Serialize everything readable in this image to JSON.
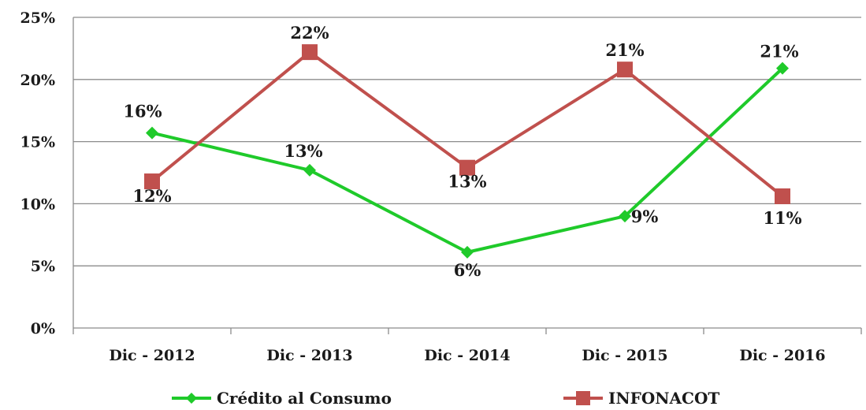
{
  "chart_data": {
    "type": "line",
    "categories": [
      "Dic - 2012",
      "Dic - 2013",
      "Dic - 2014",
      "Dic - 2015",
      "Dic - 2016"
    ],
    "ylim": [
      0,
      25
    ],
    "yticks": [
      0,
      5,
      10,
      15,
      20,
      25
    ],
    "ytick_suffix": "%",
    "grid": true,
    "legend_position": "bottom",
    "series": [
      {
        "name": "Crédito al Consumo",
        "color": "#1fca2a",
        "marker": "diamond",
        "values": [
          15.7,
          12.7,
          6.1,
          9.0,
          20.9
        ],
        "labels": [
          "16%",
          "13%",
          "6%",
          "9%",
          "21%"
        ]
      },
      {
        "name": "INFONACOT",
        "color": "#c0504d",
        "marker": "square",
        "values": [
          11.8,
          22.2,
          12.9,
          20.8,
          10.6
        ],
        "labels": [
          "12%",
          "22%",
          "13%",
          "21%",
          "11%"
        ]
      }
    ]
  }
}
